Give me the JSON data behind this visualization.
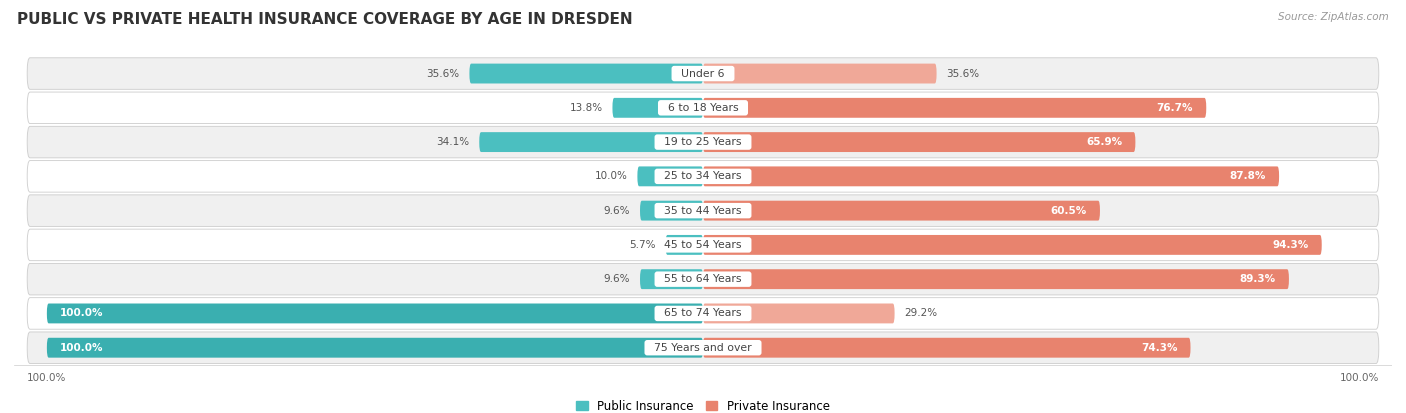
{
  "title": "PUBLIC VS PRIVATE HEALTH INSURANCE COVERAGE BY AGE IN DRESDEN",
  "source": "Source: ZipAtlas.com",
  "categories": [
    "Under 6",
    "6 to 18 Years",
    "19 to 25 Years",
    "25 to 34 Years",
    "35 to 44 Years",
    "45 to 54 Years",
    "55 to 64 Years",
    "65 to 74 Years",
    "75 Years and over"
  ],
  "public_values": [
    35.6,
    13.8,
    34.1,
    10.0,
    9.6,
    5.7,
    9.6,
    100.0,
    100.0
  ],
  "private_values": [
    35.6,
    76.7,
    65.9,
    87.8,
    60.5,
    94.3,
    89.3,
    29.2,
    74.3
  ],
  "public_color": "#4bbfc0",
  "private_color": "#e8836e",
  "private_color_light": "#f0a898",
  "bg_color": "#ffffff",
  "row_bg_even": "#f0f0f0",
  "row_bg_odd": "#ffffff",
  "title_color": "#333333",
  "source_color": "#999999",
  "label_dark": "#555555",
  "label_white": "#ffffff",
  "center_label_color": "#444444",
  "legend_public": "Public Insurance",
  "legend_private": "Private Insurance",
  "axis_label": "100.0%",
  "title_fontsize": 11,
  "bar_height": 0.58,
  "max_val": 100,
  "bar_rounding": 0.3
}
